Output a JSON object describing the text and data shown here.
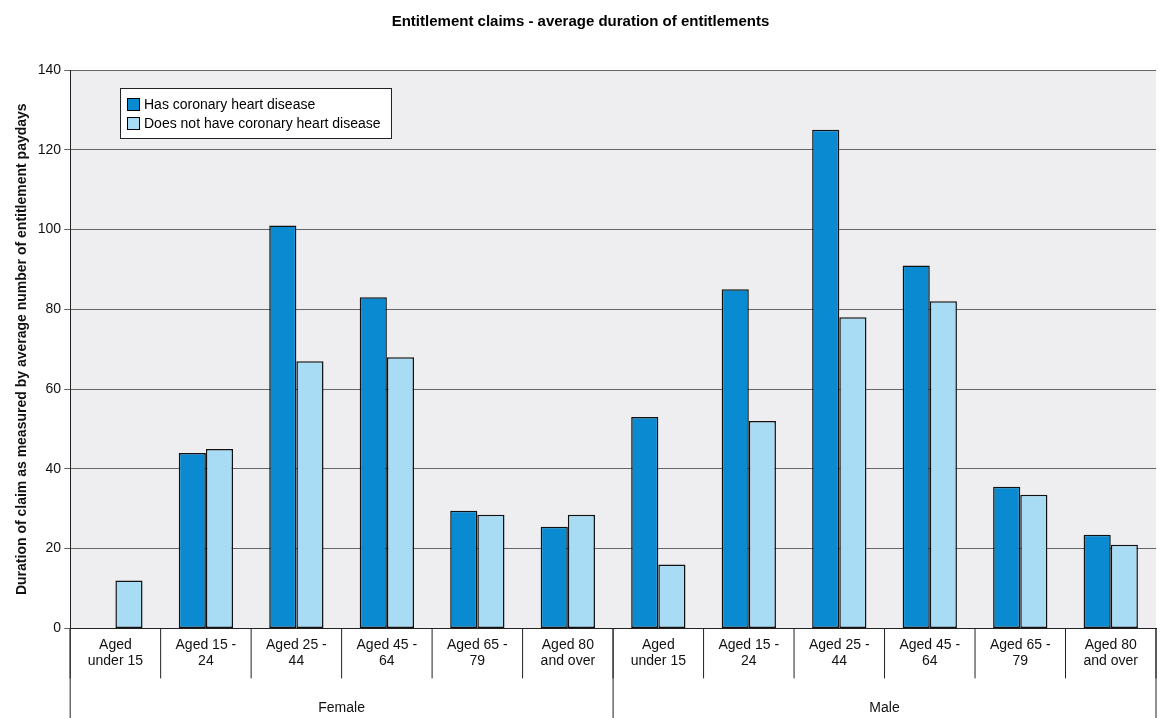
{
  "chart_data": {
    "type": "bar",
    "title": "Entitlement claims - average duration of entitlements",
    "ylabel": "Duration of claim as measured by average number of entitlement paydays",
    "categories": [
      "Aged under 15",
      "Aged 15 - 24",
      "Aged 25 - 44",
      "Aged 45 - 64",
      "Aged 65 - 79",
      "Aged 80 and over",
      "Aged under 15",
      "Aged 15 - 24",
      "Aged 25 - 44",
      "Aged 45 - 64",
      "Aged 65 - 79",
      "Aged 80 and over"
    ],
    "series": [
      {
        "name": "Has coronary heart disease",
        "color": "#0a8ad0",
        "values": [
          null,
          44,
          101,
          83,
          29.5,
          25.5,
          53,
          85,
          125,
          91,
          35.5,
          23.5
        ]
      },
      {
        "name": "Does not have coronary heart disease",
        "color": "#a8dcf5",
        "values": [
          12,
          45,
          67,
          68,
          28.5,
          28.5,
          16,
          52,
          78,
          82,
          33.5,
          21
        ]
      }
    ],
    "annotations": [
      "Female",
      "Male"
    ],
    "ylim": [
      0,
      140
    ],
    "yticks": [
      0,
      20,
      40,
      60,
      80,
      100,
      120,
      140
    ],
    "grid": "y",
    "legend": "top left"
  }
}
